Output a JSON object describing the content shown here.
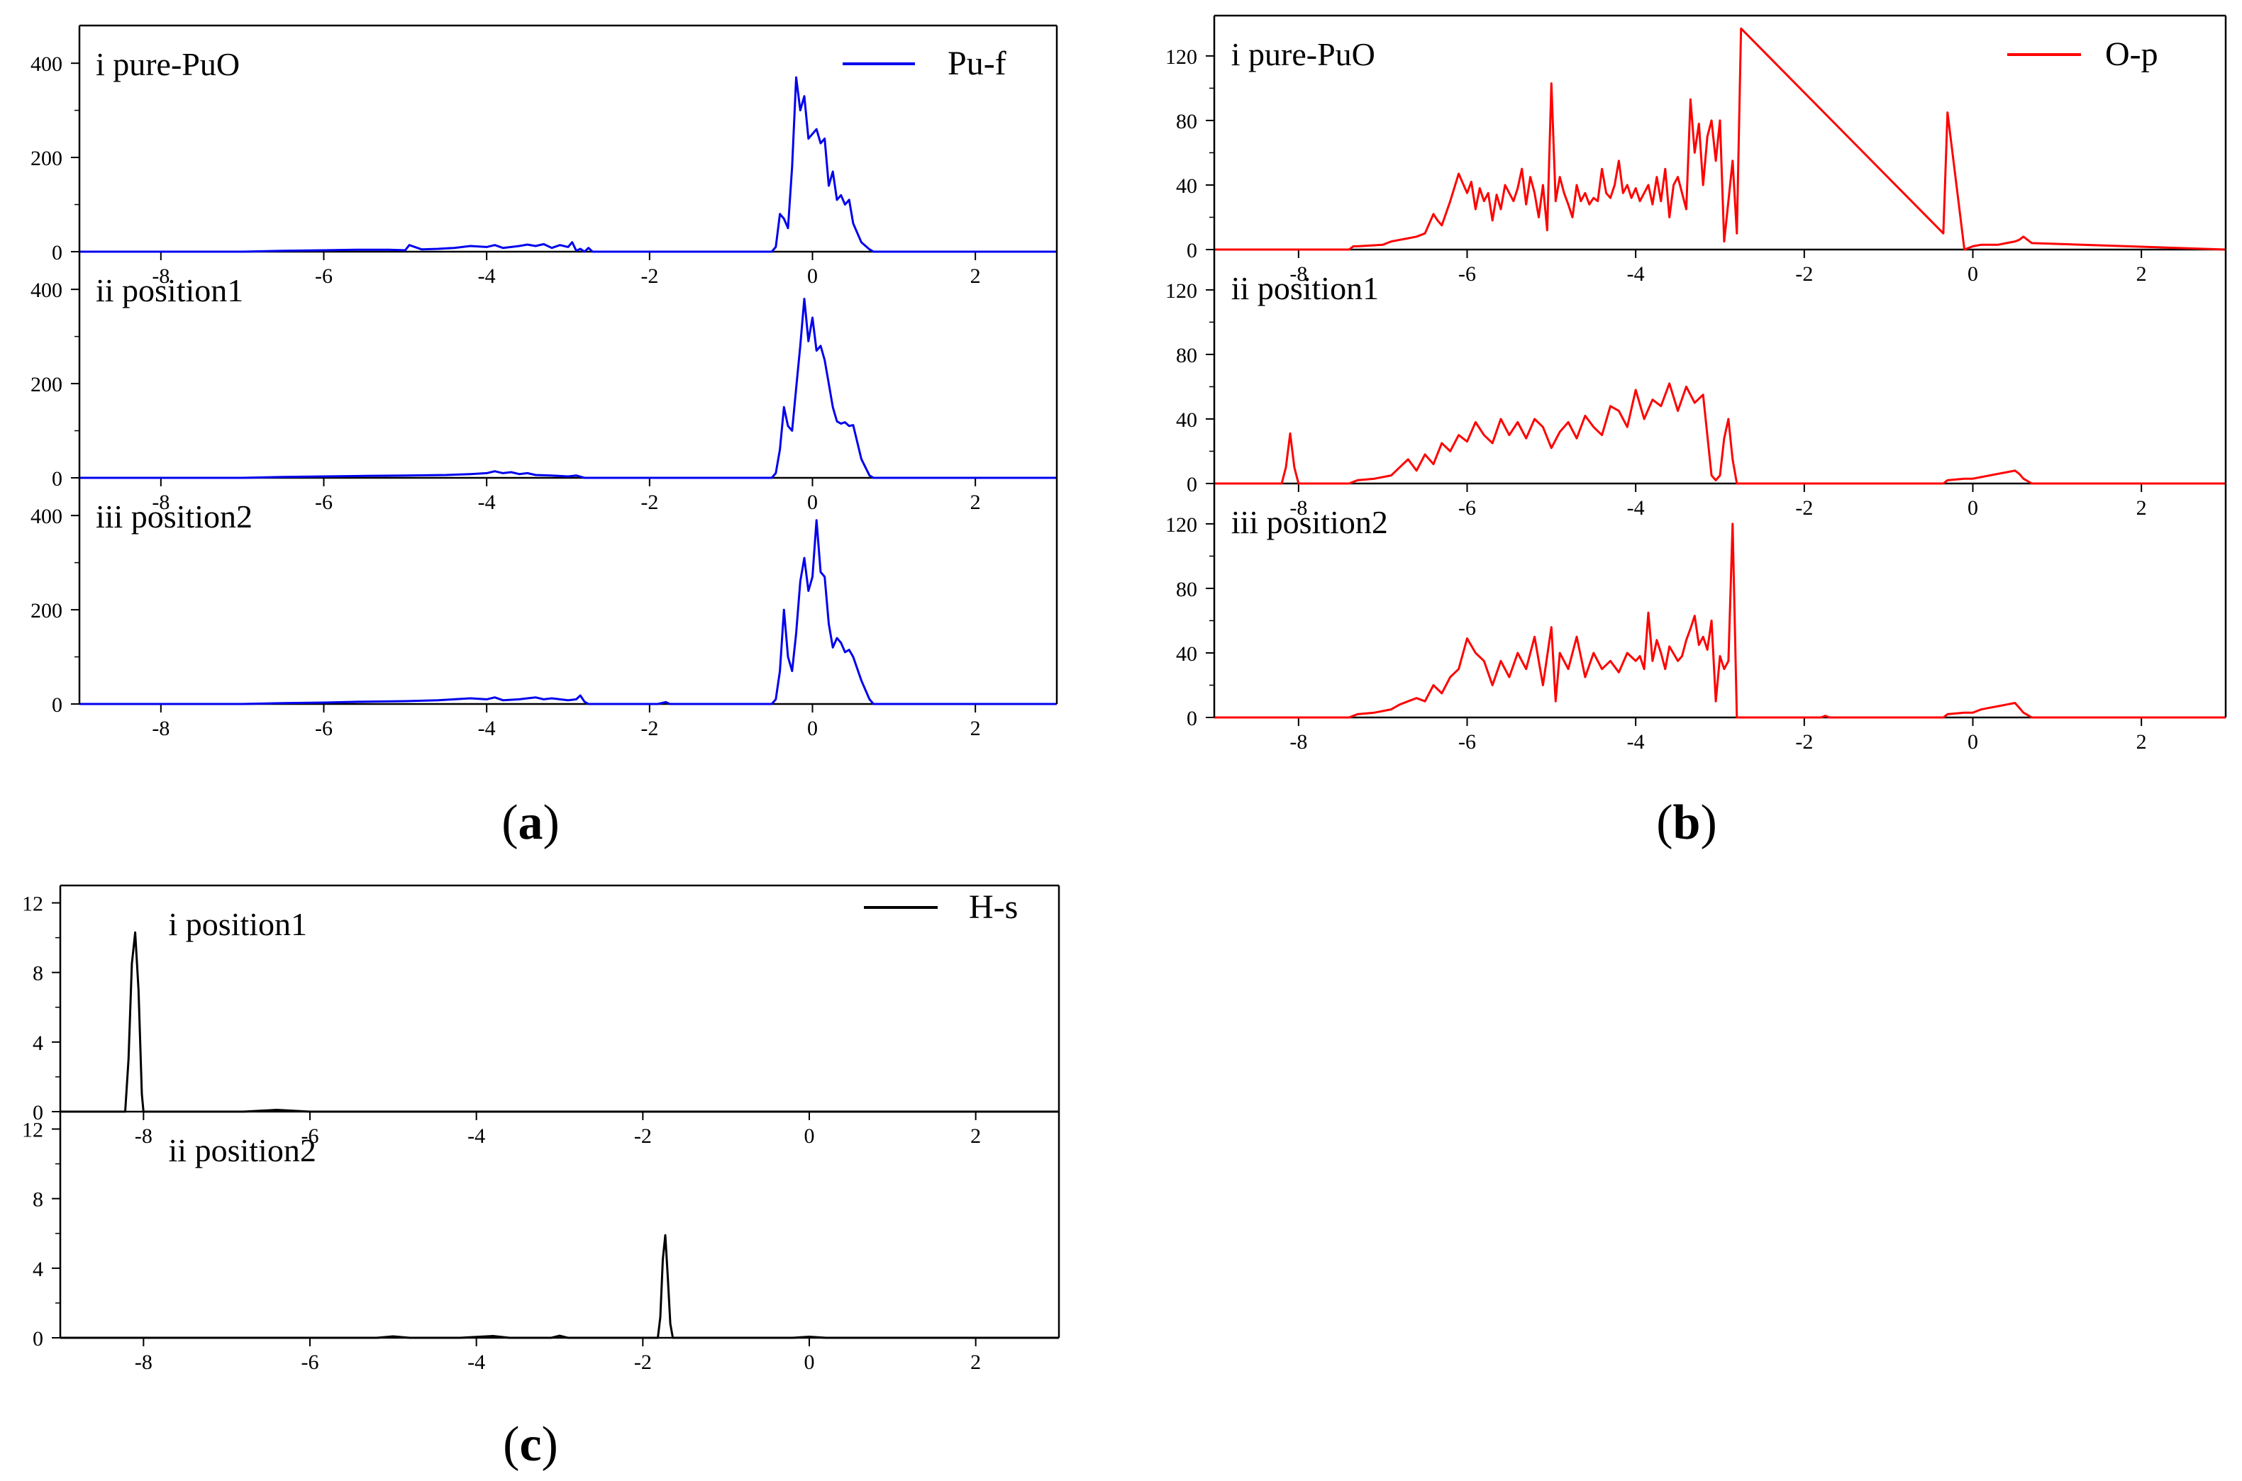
{
  "figure": {
    "captions": [
      {
        "open": "(",
        "letter": "a",
        "close": ")"
      },
      {
        "open": "(",
        "letter": "b",
        "close": ")"
      },
      {
        "open": "(",
        "letter": "c",
        "close": ")"
      }
    ]
  },
  "chart_data": [
    {
      "id": "a",
      "type": "line",
      "title": "",
      "xlabel": "",
      "ylabel": "",
      "legend": {
        "label": "Pu-f",
        "color": "#0000ee",
        "placement": "top-right"
      },
      "xlim": [
        -9,
        3
      ],
      "xticks": [
        -8,
        -6,
        -4,
        -2,
        0,
        2
      ],
      "panels": [
        {
          "label": "i pure-PuO",
          "ylim": [
            0,
            480
          ],
          "yticks": [
            0,
            200,
            400
          ],
          "x": [
            -9,
            -7,
            -6.5,
            -6,
            -5.6,
            -5.2,
            -5.0,
            -4.95,
            -4.8,
            -4.6,
            -4.4,
            -4.2,
            -4.0,
            -3.9,
            -3.8,
            -3.6,
            -3.5,
            -3.4,
            -3.3,
            -3.2,
            -3.1,
            -3.0,
            -2.95,
            -2.9,
            -2.85,
            -2.8,
            -2.75,
            -2.7,
            -0.5,
            -0.45,
            -0.4,
            -0.35,
            -0.3,
            -0.25,
            -0.2,
            -0.15,
            -0.1,
            -0.05,
            0.0,
            0.05,
            0.1,
            0.15,
            0.2,
            0.25,
            0.3,
            0.35,
            0.4,
            0.45,
            0.5,
            0.6,
            0.7,
            0.75,
            3
          ],
          "y": [
            0,
            0,
            2,
            3,
            4,
            4,
            3,
            14,
            5,
            6,
            8,
            12,
            10,
            14,
            8,
            12,
            15,
            12,
            16,
            8,
            14,
            10,
            20,
            2,
            6,
            0,
            8,
            0,
            0,
            10,
            80,
            70,
            50,
            180,
            370,
            300,
            330,
            240,
            250,
            260,
            230,
            240,
            140,
            170,
            110,
            120,
            100,
            110,
            60,
            20,
            5,
            0,
            0
          ]
        },
        {
          "label": "ii position1",
          "ylim": [
            0,
            480
          ],
          "yticks": [
            0,
            200,
            400
          ],
          "x": [
            -9,
            -7,
            -6.5,
            -6,
            -5.5,
            -5,
            -4.5,
            -4.2,
            -4.0,
            -3.9,
            -3.8,
            -3.7,
            -3.6,
            -3.5,
            -3.4,
            -3.2,
            -3.0,
            -2.9,
            -2.8,
            -0.5,
            -0.45,
            -0.4,
            -0.35,
            -0.3,
            -0.25,
            -0.2,
            -0.15,
            -0.1,
            -0.05,
            0.0,
            0.05,
            0.1,
            0.15,
            0.2,
            0.25,
            0.3,
            0.35,
            0.4,
            0.45,
            0.5,
            0.6,
            0.7,
            0.75,
            3
          ],
          "y": [
            0,
            0,
            2,
            3,
            4,
            5,
            6,
            8,
            10,
            14,
            10,
            12,
            8,
            10,
            6,
            5,
            3,
            5,
            0,
            0,
            10,
            60,
            150,
            110,
            100,
            190,
            280,
            380,
            290,
            340,
            270,
            280,
            250,
            200,
            150,
            120,
            115,
            118,
            110,
            112,
            40,
            5,
            0,
            0
          ]
        },
        {
          "label": "iii position2",
          "ylim": [
            0,
            480
          ],
          "yticks": [
            0,
            200,
            400
          ],
          "x": [
            -9,
            -7,
            -6.5,
            -6,
            -5.5,
            -5,
            -4.6,
            -4.4,
            -4.2,
            -4.0,
            -3.9,
            -3.8,
            -3.6,
            -3.5,
            -3.4,
            -3.3,
            -3.2,
            -3.0,
            -2.9,
            -2.85,
            -2.8,
            -2.75,
            -1.9,
            -1.8,
            -1.75,
            -0.5,
            -0.45,
            -0.4,
            -0.35,
            -0.3,
            -0.25,
            -0.2,
            -0.15,
            -0.1,
            -0.05,
            0.0,
            0.05,
            0.1,
            0.15,
            0.2,
            0.25,
            0.3,
            0.35,
            0.4,
            0.45,
            0.5,
            0.6,
            0.7,
            0.75,
            3
          ],
          "y": [
            0,
            0,
            2,
            3,
            5,
            6,
            8,
            10,
            12,
            10,
            14,
            8,
            10,
            12,
            14,
            10,
            12,
            8,
            10,
            18,
            5,
            0,
            0,
            4,
            0,
            0,
            10,
            70,
            200,
            100,
            70,
            150,
            260,
            310,
            240,
            270,
            390,
            280,
            270,
            170,
            120,
            140,
            130,
            110,
            115,
            100,
            50,
            10,
            0,
            0
          ]
        }
      ]
    },
    {
      "id": "b",
      "type": "line",
      "title": "",
      "xlabel": "",
      "ylabel": "",
      "legend": {
        "label": "O-p",
        "color": "#ff0000",
        "placement": "top-right"
      },
      "xlim": [
        -9,
        3
      ],
      "xticks": [
        -8,
        -6,
        -4,
        -2,
        0,
        2
      ],
      "panels": [
        {
          "label": "i pure-PuO",
          "ylim": [
            0,
            145
          ],
          "yticks": [
            0,
            40,
            80,
            120
          ],
          "x": [
            -9,
            -7.4,
            -7.35,
            -7.3,
            -7.0,
            -6.9,
            -6.8,
            -6.7,
            -6.6,
            -6.5,
            -6.4,
            -6.35,
            -6.3,
            -6.2,
            -6.1,
            -6.0,
            -5.95,
            -5.9,
            -5.85,
            -5.8,
            -5.75,
            -5.7,
            -5.65,
            -5.6,
            -5.55,
            -5.5,
            -5.45,
            -5.4,
            -5.35,
            -5.3,
            -5.25,
            -5.2,
            -5.15,
            -5.1,
            -5.05,
            -5.0,
            -4.95,
            -4.9,
            -4.85,
            -4.8,
            -4.75,
            -4.7,
            -4.65,
            -4.6,
            -4.55,
            -4.5,
            -4.45,
            -4.4,
            -4.35,
            -4.3,
            -4.25,
            -4.2,
            -4.15,
            -4.1,
            -4.05,
            -4.0,
            -3.95,
            -3.9,
            -3.85,
            -3.8,
            -3.75,
            -3.7,
            -3.65,
            -3.6,
            -3.55,
            -3.5,
            -3.45,
            -3.4,
            -3.35,
            -3.3,
            -3.25,
            -3.2,
            -3.15,
            -3.1,
            -3.05,
            -3.0,
            -2.95,
            -2.9,
            -2.85,
            -2.8,
            -2.75,
            -0.35,
            -0.3,
            -0.1,
            0.0,
            0.1,
            0.2,
            0.3,
            0.4,
            0.5,
            0.55,
            0.6,
            0.7,
            3
          ],
          "y": [
            0,
            0,
            2,
            2,
            3,
            5,
            6,
            7,
            8,
            10,
            22,
            18,
            15,
            30,
            47,
            35,
            42,
            25,
            38,
            30,
            35,
            18,
            34,
            25,
            40,
            35,
            30,
            38,
            50,
            28,
            45,
            35,
            20,
            40,
            12,
            103,
            30,
            45,
            35,
            28,
            20,
            40,
            30,
            35,
            28,
            32,
            30,
            50,
            35,
            32,
            40,
            55,
            35,
            40,
            32,
            38,
            30,
            35,
            40,
            28,
            45,
            30,
            50,
            20,
            40,
            45,
            35,
            25,
            93,
            60,
            78,
            40,
            70,
            80,
            55,
            80,
            5,
            30,
            55,
            10,
            137,
            10,
            85,
            0,
            2,
            3,
            3,
            3,
            4,
            5,
            6,
            8,
            4,
            0
          ]
        },
        {
          "label": "ii position1",
          "ylim": [
            0,
            145
          ],
          "yticks": [
            0,
            40,
            80,
            120
          ],
          "x": [
            -9,
            -8.2,
            -8.15,
            -8.1,
            -8.05,
            -8.0,
            -7.4,
            -7.3,
            -7.1,
            -6.9,
            -6.8,
            -6.7,
            -6.6,
            -6.5,
            -6.4,
            -6.3,
            -6.2,
            -6.1,
            -6.0,
            -5.9,
            -5.8,
            -5.7,
            -5.6,
            -5.5,
            -5.4,
            -5.3,
            -5.2,
            -5.1,
            -5.0,
            -4.9,
            -4.8,
            -4.7,
            -4.6,
            -4.5,
            -4.4,
            -4.3,
            -4.2,
            -4.1,
            -4.0,
            -3.9,
            -3.8,
            -3.7,
            -3.6,
            -3.5,
            -3.4,
            -3.3,
            -3.2,
            -3.1,
            -3.05,
            -3.0,
            -2.95,
            -2.9,
            -2.85,
            -2.8,
            -0.35,
            -0.3,
            -0.1,
            0.0,
            0.1,
            0.2,
            0.3,
            0.4,
            0.5,
            0.55,
            0.6,
            0.7,
            3
          ],
          "y": [
            0,
            0,
            10,
            31,
            10,
            0,
            0,
            2,
            3,
            5,
            10,
            15,
            8,
            18,
            12,
            25,
            20,
            30,
            26,
            38,
            30,
            25,
            40,
            30,
            38,
            28,
            40,
            35,
            22,
            32,
            38,
            28,
            42,
            35,
            30,
            48,
            45,
            35,
            58,
            40,
            52,
            48,
            62,
            45,
            60,
            50,
            55,
            5,
            2,
            5,
            28,
            40,
            15,
            0,
            0,
            2,
            3,
            3,
            4,
            5,
            6,
            7,
            8,
            6,
            3,
            0,
            0
          ]
        },
        {
          "label": "iii position2",
          "ylim": [
            0,
            145
          ],
          "yticks": [
            0,
            40,
            80,
            120
          ],
          "x": [
            -9,
            -7.4,
            -7.3,
            -7.1,
            -6.9,
            -6.8,
            -6.7,
            -6.6,
            -6.5,
            -6.4,
            -6.3,
            -6.2,
            -6.1,
            -6.0,
            -5.9,
            -5.8,
            -5.7,
            -5.6,
            -5.5,
            -5.4,
            -5.3,
            -5.2,
            -5.1,
            -5.0,
            -4.95,
            -4.9,
            -4.8,
            -4.7,
            -4.6,
            -4.5,
            -4.4,
            -4.3,
            -4.2,
            -4.1,
            -4.0,
            -3.95,
            -3.9,
            -3.85,
            -3.8,
            -3.75,
            -3.7,
            -3.65,
            -3.6,
            -3.5,
            -3.45,
            -3.4,
            -3.35,
            -3.3,
            -3.25,
            -3.2,
            -3.15,
            -3.1,
            -3.05,
            -3.0,
            -2.95,
            -2.9,
            -2.85,
            -2.8,
            -2.75,
            -1.8,
            -1.75,
            -1.7,
            -0.35,
            -0.3,
            -0.1,
            0.0,
            0.1,
            0.2,
            0.3,
            0.4,
            0.5,
            0.55,
            0.6,
            0.7,
            3
          ],
          "y": [
            0,
            0,
            2,
            3,
            5,
            8,
            10,
            12,
            10,
            20,
            15,
            25,
            30,
            49,
            40,
            35,
            20,
            35,
            25,
            40,
            30,
            50,
            20,
            56,
            10,
            40,
            30,
            50,
            25,
            40,
            30,
            35,
            28,
            40,
            35,
            38,
            30,
            65,
            35,
            48,
            40,
            30,
            44,
            35,
            38,
            48,
            55,
            63,
            45,
            50,
            42,
            60,
            10,
            38,
            30,
            35,
            120,
            0,
            0,
            0,
            1,
            0,
            0,
            2,
            3,
            3,
            5,
            6,
            7,
            8,
            9,
            6,
            3,
            0,
            0
          ]
        }
      ]
    },
    {
      "id": "c",
      "type": "line",
      "title": "",
      "xlabel": "",
      "ylabel": "",
      "legend": {
        "label": "H-s",
        "color": "#000000",
        "placement": "top-right"
      },
      "xlim": [
        -9,
        3
      ],
      "xticks": [
        -8,
        -6,
        -4,
        -2,
        0,
        2
      ],
      "panels": [
        {
          "label": "i position1",
          "ylim": [
            0,
            13
          ],
          "yticks": [
            0,
            4,
            8,
            12
          ],
          "x": [
            -9,
            -8.22,
            -8.18,
            -8.14,
            -8.1,
            -8.06,
            -8.02,
            -8.0,
            -6.8,
            -6.6,
            -6.4,
            -6.2,
            -6.0,
            3
          ],
          "y": [
            0,
            0,
            3,
            8.5,
            10.3,
            7,
            1,
            0,
            0,
            0.05,
            0.1,
            0.05,
            0,
            0
          ]
        },
        {
          "label": "ii position2",
          "ylim": [
            0,
            13
          ],
          "yticks": [
            0,
            4,
            8,
            12
          ],
          "x": [
            -9,
            -5.2,
            -5.0,
            -4.8,
            -4.2,
            -3.8,
            -3.6,
            -3.1,
            -3.0,
            -2.9,
            -1.82,
            -1.79,
            -1.76,
            -1.73,
            -1.7,
            -1.67,
            -1.64,
            -0.2,
            0.0,
            0.2,
            3
          ],
          "y": [
            0,
            0,
            0.08,
            0,
            0,
            0.1,
            0,
            0,
            0.12,
            0,
            0,
            1.2,
            4.5,
            5.9,
            3.5,
            0.8,
            0,
            0,
            0.06,
            0,
            0
          ]
        }
      ]
    }
  ]
}
